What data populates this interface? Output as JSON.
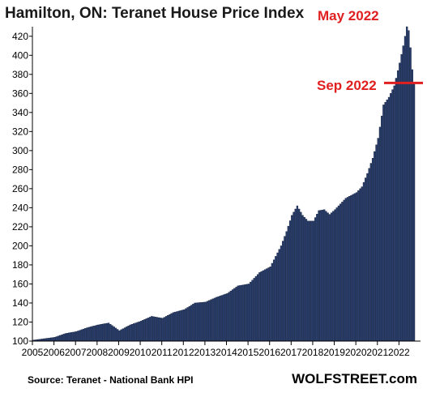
{
  "chart_data": {
    "type": "bar",
    "title": "Hamilton, ON: Teranet House Price Index",
    "xlabel": "",
    "ylabel": "",
    "ylim": [
      100,
      430
    ],
    "yticks": [
      100,
      120,
      140,
      160,
      180,
      200,
      220,
      240,
      260,
      280,
      300,
      320,
      340,
      360,
      380,
      400,
      420
    ],
    "xticks": [
      "2005",
      "2006",
      "2007",
      "2008",
      "2009",
      "2010",
      "2011",
      "2012",
      "2013",
      "2014",
      "2015",
      "2016",
      "2017",
      "2018",
      "2019",
      "2020",
      "2021",
      "2022"
    ],
    "grid": false,
    "bar_color": "#2a3f6e",
    "annotation_color": "#e02020",
    "annotations": [
      {
        "text": "May 2022",
        "date": "2022-05"
      },
      {
        "text": "Sep 2022",
        "date": "2022-09",
        "value": 371
      }
    ],
    "anchors": [
      [
        "2005-01",
        101
      ],
      [
        "2006-01",
        104
      ],
      [
        "2006-07",
        108
      ],
      [
        "2007-01",
        110
      ],
      [
        "2007-07",
        114
      ],
      [
        "2008-01",
        117
      ],
      [
        "2008-07",
        119
      ],
      [
        "2009-01",
        111
      ],
      [
        "2009-07",
        117
      ],
      [
        "2010-01",
        121
      ],
      [
        "2010-07",
        126
      ],
      [
        "2011-01",
        124
      ],
      [
        "2011-07",
        130
      ],
      [
        "2012-01",
        133
      ],
      [
        "2012-07",
        140
      ],
      [
        "2013-01",
        141
      ],
      [
        "2013-07",
        146
      ],
      [
        "2014-01",
        150
      ],
      [
        "2014-07",
        158
      ],
      [
        "2015-01",
        160
      ],
      [
        "2015-07",
        172
      ],
      [
        "2016-01",
        178
      ],
      [
        "2016-07",
        200
      ],
      [
        "2016-10",
        215
      ],
      [
        "2017-01",
        232
      ],
      [
        "2017-04",
        242
      ],
      [
        "2017-07",
        232
      ],
      [
        "2017-10",
        226
      ],
      [
        "2018-01",
        226
      ],
      [
        "2018-04",
        237
      ],
      [
        "2018-07",
        238
      ],
      [
        "2018-10",
        233
      ],
      [
        "2019-01",
        238
      ],
      [
        "2019-07",
        250
      ],
      [
        "2020-01",
        256
      ],
      [
        "2020-04",
        262
      ],
      [
        "2020-07",
        276
      ],
      [
        "2020-10",
        292
      ],
      [
        "2021-01",
        313
      ],
      [
        "2021-04",
        348
      ],
      [
        "2021-07",
        356
      ],
      [
        "2021-10",
        368
      ],
      [
        "2022-01",
        392
      ],
      [
        "2022-03",
        410
      ],
      [
        "2022-05",
        430
      ],
      [
        "2022-06",
        426
      ],
      [
        "2022-07",
        408
      ],
      [
        "2022-08",
        385
      ],
      [
        "2022-09",
        371
      ]
    ]
  },
  "footer": {
    "source": "Source: Teranet - National Bank HPI",
    "brand": "WOLFSTREET.com"
  }
}
